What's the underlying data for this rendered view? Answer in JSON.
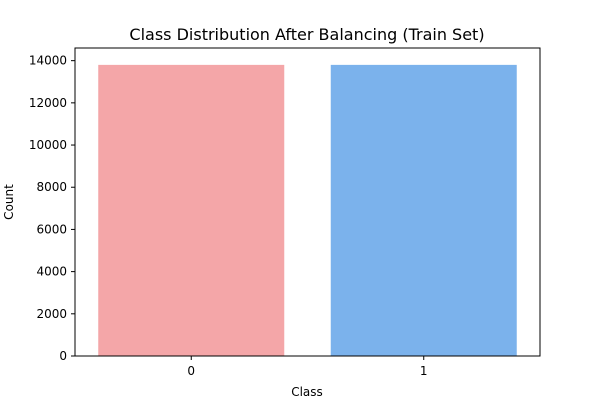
{
  "chart_data": {
    "type": "bar",
    "title": "Class Distribution After Balancing (Train Set)",
    "xlabel": "Class",
    "ylabel": "Count",
    "categories": [
      "0",
      "1"
    ],
    "values": [
      13800,
      13800
    ],
    "colors": [
      "#f4a6a8",
      "#7bb2ec"
    ],
    "ylim": [
      0,
      14600
    ],
    "yticks": [
      0,
      2000,
      4000,
      6000,
      8000,
      10000,
      12000,
      14000
    ],
    "grid": false,
    "legend": "none"
  }
}
